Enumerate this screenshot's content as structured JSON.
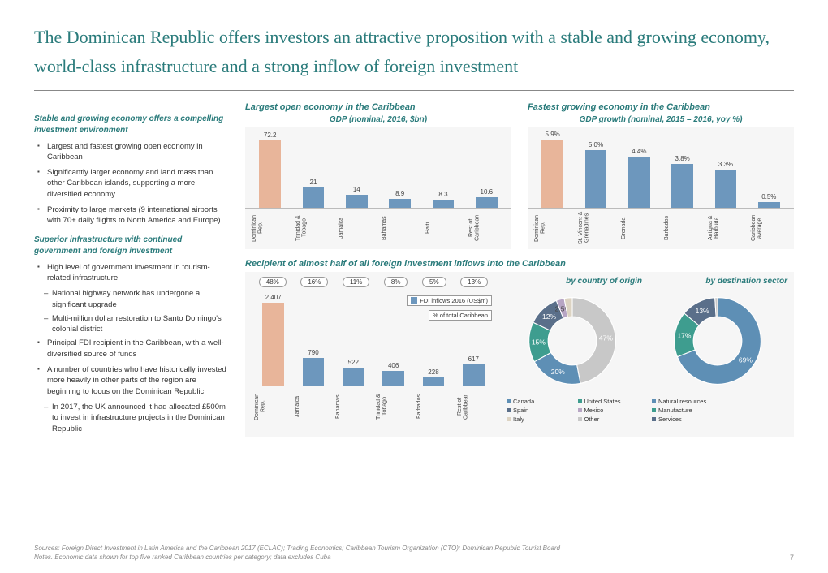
{
  "title": "The Dominican Republic offers investors an attractive proposition with a stable and growing economy, world-class infrastructure and a strong inflow of foreign investment",
  "left": {
    "h1": "Stable and growing economy offers a compelling investment environment",
    "b1": "Largest and fastest growing open economy in Caribbean",
    "b2": "Significantly larger economy and land mass than other Caribbean islands, supporting a more diversified economy",
    "b3": "Proximity to large markets (9 international airports with 70+ daily flights to North America and Europe)",
    "h2": "Superior infrastructure with continued government and foreign investment",
    "b4": "High level of government investment in tourism-related infrastructure",
    "b4a": "National highway network has undergone a significant upgrade",
    "b4b": "Multi-million dollar restoration to Santo Domingo's colonial district",
    "b5": "Principal FDI recipient in the Caribbean, with a well-diversified source of funds",
    "b6": "A number of countries who have historically invested more heavily in other parts of the region are beginning to focus on the Dominican Republic",
    "b6a": "In 2017, the UK announced it had allocated £500m to invest in infrastructure projects in the Dominican Republic"
  },
  "gdp_chart": {
    "title": "Largest open economy in the Caribbean",
    "subtitle": "GDP (nominal, 2016, $bn)",
    "max": 80,
    "colors": {
      "highlight": "#e8b59a",
      "normal": "#6d97bd"
    },
    "cats": [
      "Dominican Rep.",
      "Trinidad & Tobago",
      "Jamaica",
      "Bahamas",
      "Haiti",
      "Rest of Caribbean"
    ],
    "vals": [
      72.2,
      21.0,
      14.0,
      8.9,
      8.3,
      10.6
    ],
    "highlight_idx": 0
  },
  "growth_chart": {
    "title": "Fastest growing economy in the Caribbean",
    "subtitle": "GDP growth (nominal, 2015 – 2016, yoy %)",
    "max": 6.5,
    "cats": [
      "Dominican Rep.",
      "St. Vincent & Grenadines",
      "Grenada",
      "Barbados",
      "Antigua & Barbuda",
      "Caribbean average"
    ],
    "vals": [
      "5.9%",
      "5.0%",
      "4.4%",
      "3.8%",
      "3.3%",
      "0.5%"
    ],
    "nums": [
      5.9,
      5.0,
      4.4,
      3.8,
      3.3,
      0.5
    ],
    "highlight_idx": 0
  },
  "fdi": {
    "title": "Recipient of almost half of all foreign investment inflows into the Caribbean",
    "pcts": [
      "48%",
      "16%",
      "11%",
      "8%",
      "5%",
      "13%"
    ],
    "cats": [
      "Dominican Rep.",
      "Jamaica",
      "Bahamas",
      "Trinidad & Tobago",
      "Barbados",
      "Rest of Caribbean"
    ],
    "vals": [
      2407,
      790,
      522,
      406,
      228,
      617
    ],
    "max": 2600,
    "highlight_idx": 0,
    "legend1": "FDI inflows 2016 (US$m)",
    "legend2": "% of total Caribbean"
  },
  "donut_origin": {
    "title": "by country of origin",
    "slices": [
      {
        "label": "47%",
        "v": 47,
        "color": "#c8c8c8"
      },
      {
        "label": "20%",
        "v": 20,
        "color": "#5e8fb5"
      },
      {
        "label": "15%",
        "v": 15,
        "color": "#3e9d8f"
      },
      {
        "label": "12%",
        "v": 12,
        "color": "#5a6f8a"
      },
      {
        "label": "2.5%",
        "v": 3,
        "color": "#b7a5c4"
      },
      {
        "label": "",
        "v": 3,
        "color": "#dcd3c2"
      }
    ],
    "legend": [
      {
        "c": "#5e8fb5",
        "t": "Canada"
      },
      {
        "c": "#3e9d8f",
        "t": "United States"
      },
      {
        "c": "#5a6f8a",
        "t": "Spain"
      },
      {
        "c": "#b7a5c4",
        "t": "Mexico"
      },
      {
        "c": "#dcd3c2",
        "t": "Italy"
      },
      {
        "c": "#c8c8c8",
        "t": "Other"
      }
    ]
  },
  "donut_sector": {
    "title": "by destination sector",
    "slices": [
      {
        "label": "69%",
        "v": 69,
        "color": "#5e8fb5"
      },
      {
        "label": "17%",
        "v": 17,
        "color": "#3e9d8f"
      },
      {
        "label": "13%",
        "v": 13,
        "color": "#5a6f8a"
      },
      {
        "label": "",
        "v": 1,
        "color": "#c8c8c8"
      }
    ],
    "legend": [
      {
        "c": "#5e8fb5",
        "t": "Natural resources"
      },
      {
        "c": "#3e9d8f",
        "t": "Manufacture"
      },
      {
        "c": "#5a6f8a",
        "t": "Services"
      }
    ]
  },
  "footer": {
    "l1": "Sources: Foreign Direct Investment in Latin America and the Caribbean 2017 (ECLAC); Trading Economics; Caribbean Tourism Organization (CTO); Dominican Republic Tourist Board",
    "l2": "Notes. Economic data shown for top five ranked Caribbean countries per category; data excludes Cuba",
    "page": "7"
  }
}
